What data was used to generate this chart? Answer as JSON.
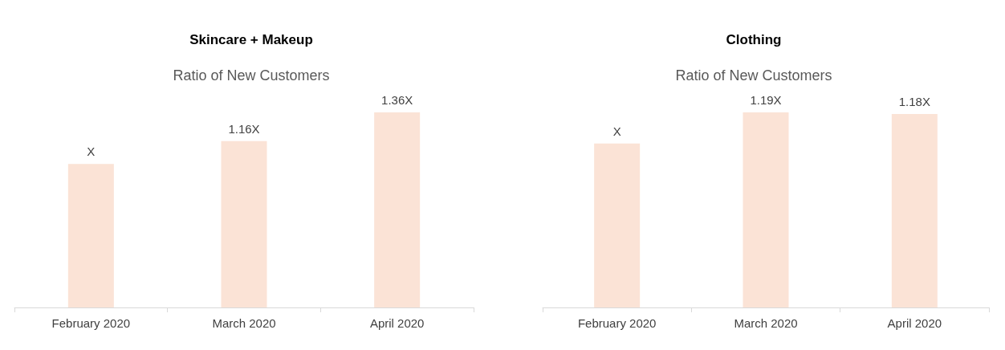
{
  "chart_data": [
    {
      "type": "bar",
      "title": "Skincare + Makeup",
      "subtitle": "Ratio of New Customers",
      "categories": [
        "February 2020",
        "March 2020",
        "April 2020"
      ],
      "values": [
        1,
        1.16,
        1.36
      ],
      "value_labels": [
        "X",
        "1.16X",
        "1.36X"
      ],
      "color": "#fbe3d6"
    },
    {
      "type": "bar",
      "title": "Clothing",
      "subtitle": "Ratio of New Customers",
      "categories": [
        "February 2020",
        "March 2020",
        "April 2020"
      ],
      "values": [
        1,
        1.19,
        1.18
      ],
      "value_labels": [
        "X",
        "1.19X",
        "1.18X"
      ],
      "color": "#fbe3d6"
    }
  ]
}
